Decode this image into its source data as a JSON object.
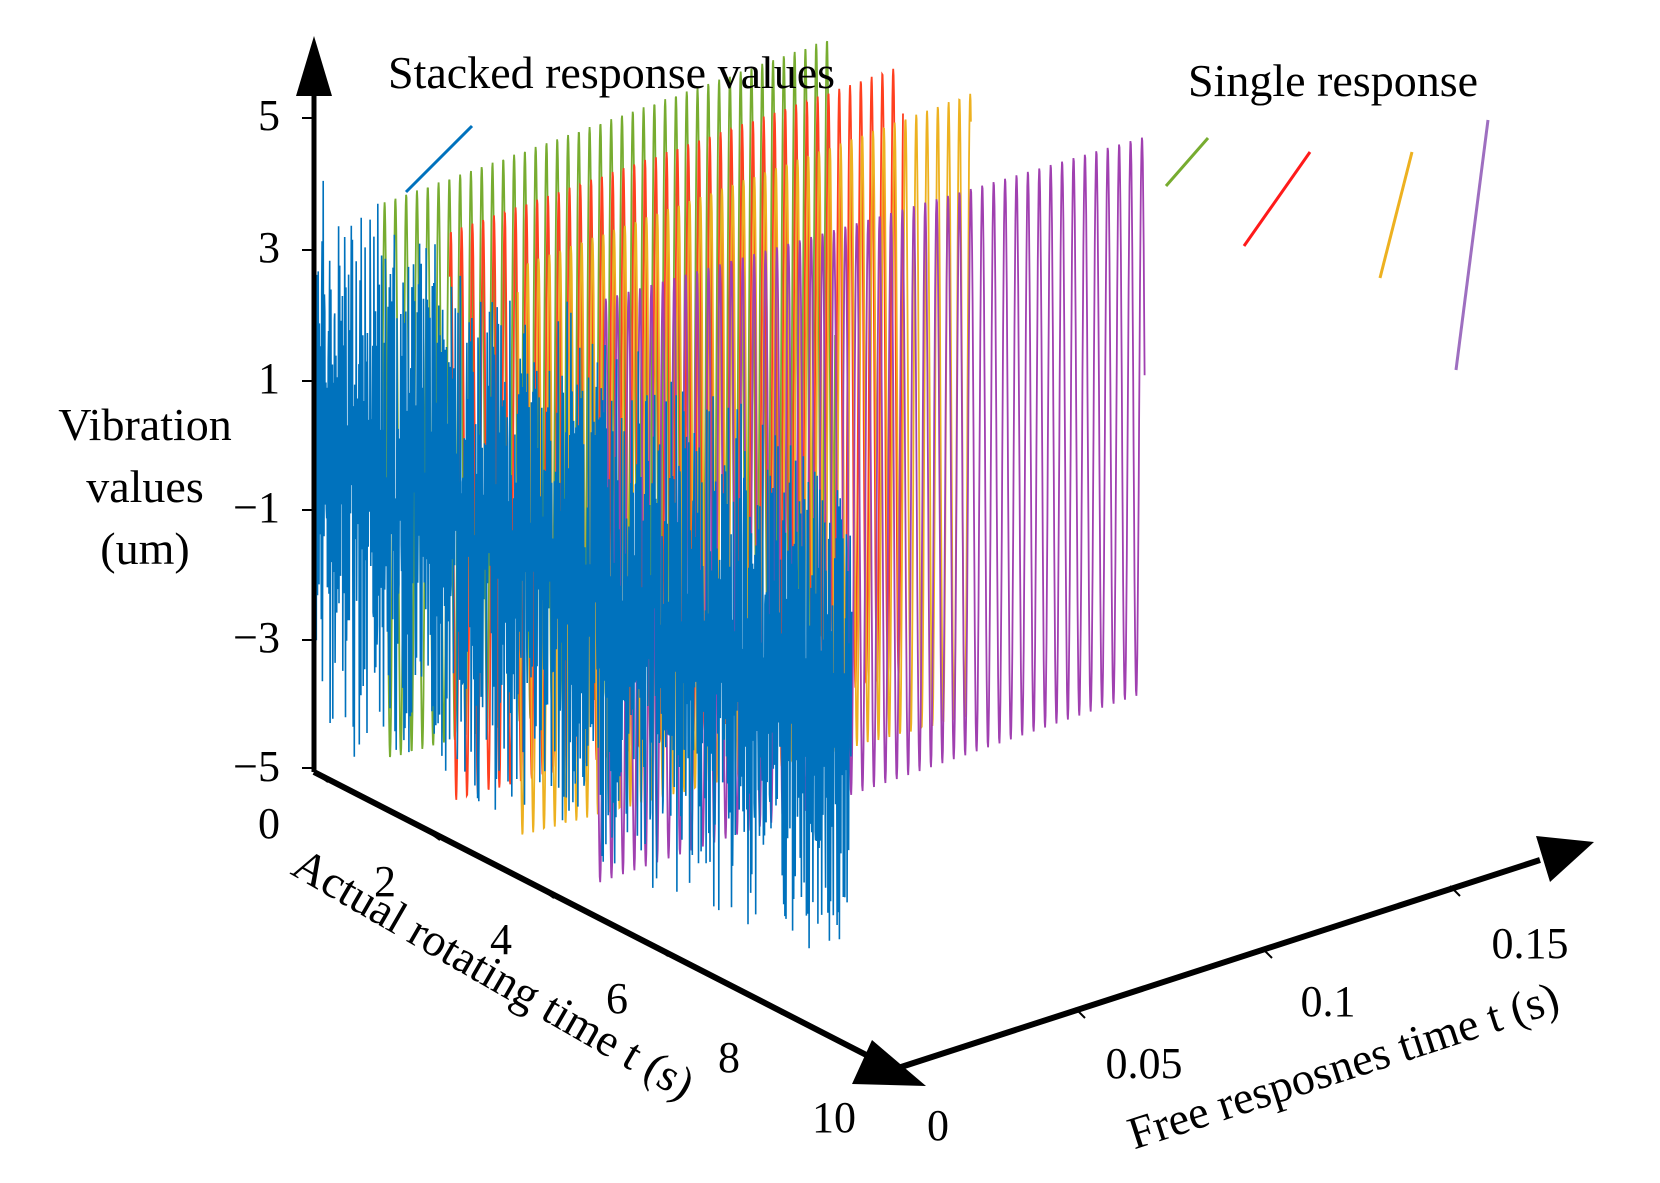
{
  "chart_data": {
    "type": "line",
    "subtype": "3d-waterfall",
    "zlabel_lines": [
      "Vibration",
      "values",
      "(um)"
    ],
    "ylabel": "Actual rotating time t (s)",
    "xlabel": "Free resposnes time t (s)",
    "z_ticks": [
      "5",
      "3",
      "1",
      "−1",
      "−3",
      "−5"
    ],
    "y_ticks": [
      "0",
      "2",
      "4",
      "6",
      "8",
      "10"
    ],
    "x_ticks": [
      "0",
      "0.05",
      "0.1",
      "0.15"
    ],
    "zlim": [
      -5,
      5
    ],
    "ylim": [
      0,
      10
    ],
    "xlim": [
      0,
      0.17
    ],
    "annotations": {
      "stacked": "Stacked response values",
      "single": "Single  response"
    },
    "series": [
      {
        "name": "Single response 1",
        "color": "#77ac30",
        "actual_time_s": 1.2,
        "amplitude_um": [
          4.3,
          4.6
        ],
        "offset_um": 0,
        "cycles": 42,
        "duration_s": 0.12
      },
      {
        "name": "Single response 2",
        "color": "#ff3f1f",
        "actual_time_s": 2.4,
        "amplitude_um": [
          4.4,
          4.7
        ],
        "offset_um": 0,
        "cycles": 42,
        "duration_s": 0.12
      },
      {
        "name": "Single response 3",
        "color": "#edb120",
        "actual_time_s": 3.6,
        "amplitude_um": [
          4.4,
          4.8
        ],
        "offset_um": 0,
        "cycles": 42,
        "duration_s": 0.12
      },
      {
        "name": "Single response 4",
        "color": "#a040b0",
        "actual_time_s": 5.0,
        "amplitude_um": [
          4.5,
          4.3
        ],
        "offset_um": 0,
        "cycles": 48,
        "duration_s": 0.145
      },
      {
        "name": "Stacked response values",
        "color": "#0072bd",
        "actual_time_s": [
          0,
          10
        ],
        "amplitude_um": [
          5,
          4.5
        ],
        "points": 1400
      }
    ]
  }
}
